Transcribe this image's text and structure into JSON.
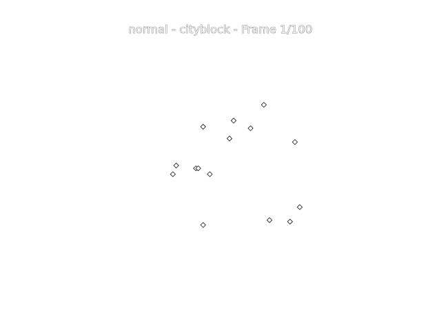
{
  "chart_data": {
    "type": "scatter",
    "title": "normal - cityblock - Frame 1/100",
    "marker": "diamond",
    "marker_fill": "#ffffff",
    "marker_edge": "#111111",
    "grid": false,
    "axes_visible": false,
    "xlim": [
      0,
      1
    ],
    "ylim": [
      0,
      1
    ],
    "points": [
      {
        "x": 0.645,
        "y": 0.746
      },
      {
        "x": 0.527,
        "y": 0.684
      },
      {
        "x": 0.408,
        "y": 0.66
      },
      {
        "x": 0.593,
        "y": 0.654
      },
      {
        "x": 0.511,
        "y": 0.614
      },
      {
        "x": 0.766,
        "y": 0.6
      },
      {
        "x": 0.303,
        "y": 0.508
      },
      {
        "x": 0.38,
        "y": 0.497
      },
      {
        "x": 0.389,
        "y": 0.497
      },
      {
        "x": 0.29,
        "y": 0.474
      },
      {
        "x": 0.434,
        "y": 0.474
      },
      {
        "x": 0.785,
        "y": 0.345
      },
      {
        "x": 0.667,
        "y": 0.294
      },
      {
        "x": 0.747,
        "y": 0.288
      },
      {
        "x": 0.408,
        "y": 0.275
      }
    ]
  }
}
